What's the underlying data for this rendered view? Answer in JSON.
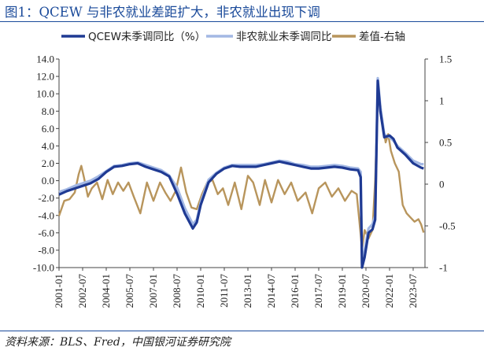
{
  "figure": {
    "title": "图1：QCEW 与非农就业差距扩大，非农就业出现下调",
    "source": "资料来源：BLS、Fred，中国银河证券研究院"
  },
  "chart_data": {
    "type": "line",
    "title": "图1：QCEW 与非农就业差距扩大，非农就业出现下调",
    "xlabel": "",
    "ylabel": "",
    "x_ticks": [
      "2001-01",
      "2002-07",
      "2004-01",
      "2005-07",
      "2007-01",
      "2008-07",
      "2010-01",
      "2011-07",
      "2013-01",
      "2014-07",
      "2016-01",
      "2017-07",
      "2019-01",
      "2020-07",
      "2022-01",
      "2023-07"
    ],
    "y_left": {
      "min": -10,
      "max": 14,
      "ticks": [
        "14.0",
        "12.0",
        "10.0",
        "8.0",
        "6.0",
        "4.0",
        "2.0",
        "0.0",
        "-2.0",
        "-4.0",
        "-6.0",
        "-8.0",
        "-10.0"
      ]
    },
    "y_right": {
      "min": -1,
      "max": 1.5,
      "ticks": [
        "1.5",
        "1",
        "0.5",
        "0",
        "-0.5",
        "-1"
      ]
    },
    "legend_position": "top",
    "grid": false,
    "series": [
      {
        "name": "QCEW未季调同比（%）",
        "axis": "left",
        "color": "#1f3a93",
        "points": [
          [
            "2001-01",
            -1.6
          ],
          [
            "2001-07",
            -1.2
          ],
          [
            "2002-01",
            -0.9
          ],
          [
            "2002-07",
            -0.6
          ],
          [
            "2003-01",
            -0.3
          ],
          [
            "2003-07",
            0.2
          ],
          [
            "2004-01",
            1.0
          ],
          [
            "2004-07",
            1.6
          ],
          [
            "2005-01",
            1.7
          ],
          [
            "2005-07",
            1.9
          ],
          [
            "2006-01",
            2.0
          ],
          [
            "2006-07",
            1.6
          ],
          [
            "2007-01",
            1.3
          ],
          [
            "2007-07",
            1.0
          ],
          [
            "2008-01",
            0.5
          ],
          [
            "2008-07",
            -1.5
          ],
          [
            "2009-01",
            -3.8
          ],
          [
            "2009-07",
            -5.5
          ],
          [
            "2009-10",
            -4.8
          ],
          [
            "2010-01",
            -2.8
          ],
          [
            "2010-07",
            -0.2
          ],
          [
            "2011-01",
            0.8
          ],
          [
            "2011-07",
            1.4
          ],
          [
            "2012-01",
            1.7
          ],
          [
            "2012-07",
            1.6
          ],
          [
            "2013-01",
            1.6
          ],
          [
            "2013-07",
            1.6
          ],
          [
            "2014-01",
            1.8
          ],
          [
            "2014-07",
            2.0
          ],
          [
            "2015-01",
            2.2
          ],
          [
            "2015-07",
            2.0
          ],
          [
            "2016-01",
            1.8
          ],
          [
            "2016-07",
            1.6
          ],
          [
            "2017-01",
            1.4
          ],
          [
            "2017-07",
            1.4
          ],
          [
            "2018-01",
            1.5
          ],
          [
            "2018-07",
            1.6
          ],
          [
            "2019-01",
            1.5
          ],
          [
            "2019-07",
            1.3
          ],
          [
            "2020-01",
            1.2
          ],
          [
            "2020-03",
            0.4
          ],
          [
            "2020-04",
            -10.0
          ],
          [
            "2020-06",
            -8.8
          ],
          [
            "2020-09",
            -6.0
          ],
          [
            "2020-12",
            -5.6
          ],
          [
            "2021-02",
            -4.5
          ],
          [
            "2021-04",
            11.5
          ],
          [
            "2021-06",
            8.0
          ],
          [
            "2021-09",
            5.0
          ],
          [
            "2022-01",
            5.2
          ],
          [
            "2022-04",
            4.8
          ],
          [
            "2022-07",
            3.8
          ],
          [
            "2023-01",
            3.0
          ],
          [
            "2023-07",
            2.0
          ],
          [
            "2024-01",
            1.5
          ],
          [
            "2024-03",
            1.4
          ]
        ]
      },
      {
        "name": "非农就业未季调同比",
        "axis": "left",
        "color": "#a3b8e4",
        "points": [
          [
            "2001-01",
            -1.3
          ],
          [
            "2001-07",
            -1.0
          ],
          [
            "2002-01",
            -0.6
          ],
          [
            "2002-07",
            -0.3
          ],
          [
            "2003-01",
            0.0
          ],
          [
            "2003-07",
            0.5
          ],
          [
            "2004-01",
            1.1
          ],
          [
            "2004-07",
            1.7
          ],
          [
            "2005-01",
            1.8
          ],
          [
            "2005-07",
            2.0
          ],
          [
            "2006-01",
            2.1
          ],
          [
            "2006-07",
            1.8
          ],
          [
            "2007-01",
            1.5
          ],
          [
            "2007-07",
            1.2
          ],
          [
            "2008-01",
            0.6
          ],
          [
            "2008-07",
            -0.8
          ],
          [
            "2009-01",
            -3.2
          ],
          [
            "2009-07",
            -5.0
          ],
          [
            "2009-10",
            -4.5
          ],
          [
            "2010-01",
            -2.5
          ],
          [
            "2010-07",
            0.1
          ],
          [
            "2011-01",
            0.9
          ],
          [
            "2011-07",
            1.5
          ],
          [
            "2012-01",
            1.8
          ],
          [
            "2012-07",
            1.8
          ],
          [
            "2013-01",
            1.8
          ],
          [
            "2013-07",
            1.8
          ],
          [
            "2014-01",
            1.9
          ],
          [
            "2014-07",
            2.1
          ],
          [
            "2015-01",
            2.3
          ],
          [
            "2015-07",
            2.2
          ],
          [
            "2016-01",
            1.9
          ],
          [
            "2016-07",
            1.8
          ],
          [
            "2017-01",
            1.6
          ],
          [
            "2017-07",
            1.6
          ],
          [
            "2018-01",
            1.7
          ],
          [
            "2018-07",
            1.8
          ],
          [
            "2019-01",
            1.7
          ],
          [
            "2019-07",
            1.5
          ],
          [
            "2020-01",
            1.4
          ],
          [
            "2020-03",
            1.0
          ],
          [
            "2020-04",
            -9.5
          ],
          [
            "2020-06",
            -8.0
          ],
          [
            "2020-09",
            -5.5
          ],
          [
            "2020-12",
            -5.0
          ],
          [
            "2021-02",
            -4.0
          ],
          [
            "2021-04",
            11.8
          ],
          [
            "2021-06",
            8.5
          ],
          [
            "2021-09",
            5.3
          ],
          [
            "2022-01",
            5.0
          ],
          [
            "2022-04",
            4.6
          ],
          [
            "2022-07",
            4.0
          ],
          [
            "2023-01",
            3.2
          ],
          [
            "2023-07",
            2.3
          ],
          [
            "2024-01",
            1.9
          ],
          [
            "2024-03",
            1.9
          ]
        ]
      },
      {
        "name": "差值-右轴",
        "axis": "right",
        "color": "#b8955c",
        "points": [
          [
            "2001-01",
            -0.38
          ],
          [
            "2001-05",
            -0.2
          ],
          [
            "2001-09",
            -0.18
          ],
          [
            "2002-01",
            -0.1
          ],
          [
            "2002-04",
            0.12
          ],
          [
            "2002-06",
            0.22
          ],
          [
            "2002-08",
            0.08
          ],
          [
            "2002-11",
            -0.15
          ],
          [
            "2003-02",
            -0.05
          ],
          [
            "2003-06",
            0.02
          ],
          [
            "2003-10",
            -0.18
          ],
          [
            "2004-02",
            0.05
          ],
          [
            "2004-06",
            -0.12
          ],
          [
            "2004-10",
            0.02
          ],
          [
            "2005-02",
            -0.08
          ],
          [
            "2005-06",
            0.02
          ],
          [
            "2005-10",
            -0.15
          ],
          [
            "2006-03",
            -0.35
          ],
          [
            "2006-08",
            0.02
          ],
          [
            "2007-01",
            -0.2
          ],
          [
            "2007-06",
            0.02
          ],
          [
            "2007-10",
            -0.1
          ],
          [
            "2008-02",
            -0.2
          ],
          [
            "2008-06",
            -0.08
          ],
          [
            "2008-10",
            0.2
          ],
          [
            "2009-02",
            -0.1
          ],
          [
            "2009-06",
            -0.28
          ],
          [
            "2009-10",
            -0.3
          ],
          [
            "2010-02",
            -0.12
          ],
          [
            "2010-06",
            0.02
          ],
          [
            "2010-10",
            0.05
          ],
          [
            "2011-02",
            -0.12
          ],
          [
            "2011-06",
            -0.05
          ],
          [
            "2011-10",
            -0.25
          ],
          [
            "2012-03",
            0.02
          ],
          [
            "2012-08",
            -0.3
          ],
          [
            "2013-01",
            0.1
          ],
          [
            "2013-05",
            0.02
          ],
          [
            "2013-10",
            -0.25
          ],
          [
            "2014-02",
            0.05
          ],
          [
            "2014-07",
            -0.22
          ],
          [
            "2014-12",
            0.05
          ],
          [
            "2015-05",
            -0.12
          ],
          [
            "2015-10",
            0.02
          ],
          [
            "2016-03",
            -0.2
          ],
          [
            "2016-09",
            -0.1
          ],
          [
            "2017-02",
            -0.35
          ],
          [
            "2017-07",
            -0.05
          ],
          [
            "2017-12",
            0.02
          ],
          [
            "2018-05",
            -0.15
          ],
          [
            "2018-10",
            -0.05
          ],
          [
            "2019-03",
            -0.2
          ],
          [
            "2019-08",
            -0.08
          ],
          [
            "2019-12",
            -0.12
          ],
          [
            "2020-02",
            -0.45
          ],
          [
            "2020-04",
            -0.78
          ],
          [
            "2020-06",
            -0.55
          ],
          [
            "2020-09",
            -0.65
          ],
          [
            "2020-12",
            -0.55
          ],
          [
            "2021-02",
            0.05
          ],
          [
            "2021-04",
            1.05
          ],
          [
            "2021-06",
            0.95
          ],
          [
            "2021-08",
            0.7
          ],
          [
            "2021-10",
            0.5
          ],
          [
            "2021-12",
            0.6
          ],
          [
            "2022-02",
            0.4
          ],
          [
            "2022-05",
            0.25
          ],
          [
            "2022-08",
            0.15
          ],
          [
            "2022-11",
            -0.25
          ],
          [
            "2023-02",
            -0.35
          ],
          [
            "2023-05",
            -0.4
          ],
          [
            "2023-08",
            -0.45
          ],
          [
            "2023-11",
            -0.42
          ],
          [
            "2024-01",
            -0.48
          ],
          [
            "2024-03",
            -0.58
          ]
        ]
      }
    ]
  }
}
